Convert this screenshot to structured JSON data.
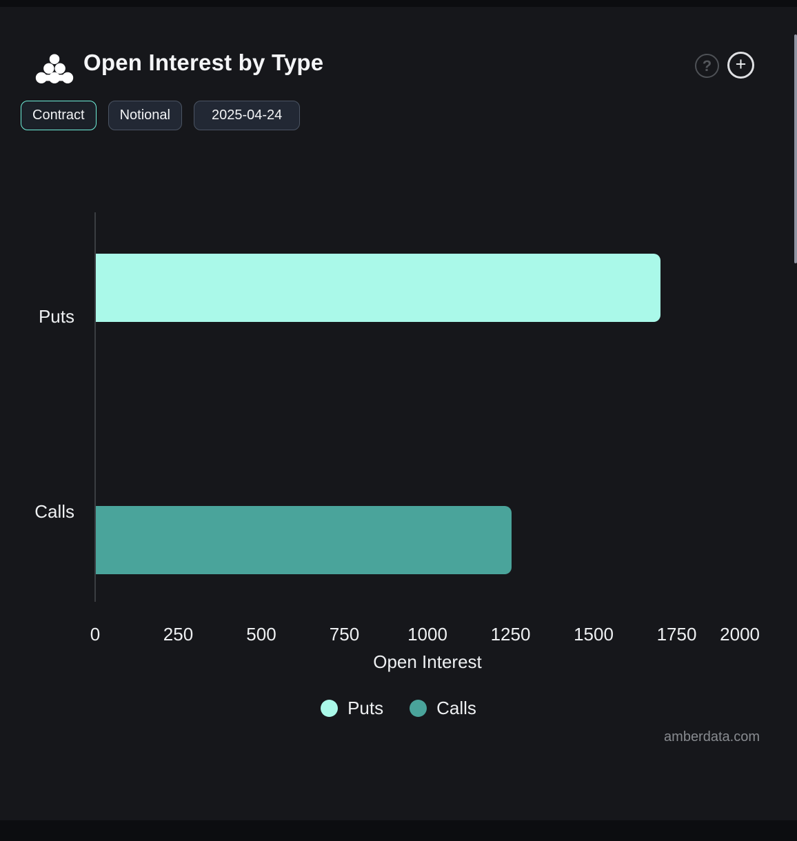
{
  "header": {
    "title": "Open Interest by Type",
    "help_label": "?",
    "add_label": "+"
  },
  "toolbar": {
    "contract_label": "Contract",
    "notional_label": "Notional",
    "date_label": "2025-04-24"
  },
  "chart_data": {
    "type": "bar",
    "orientation": "horizontal",
    "title": "Open Interest by Type",
    "categories": [
      "Puts",
      "Calls"
    ],
    "values": [
      1700,
      1250
    ],
    "colors": [
      "#aaf9e9",
      "#4aa49b"
    ],
    "xlabel": "Open Interest",
    "xlim": [
      0,
      2000
    ],
    "xticks": [
      0,
      250,
      500,
      750,
      1000,
      1250,
      1500,
      1750,
      2000
    ],
    "grid": false,
    "legend": [
      {
        "label": "Puts",
        "color": "#aaf9e9"
      },
      {
        "label": "Calls",
        "color": "#4aa49b"
      }
    ],
    "legend_position": "bottom"
  },
  "watermark": "amberdata.com"
}
